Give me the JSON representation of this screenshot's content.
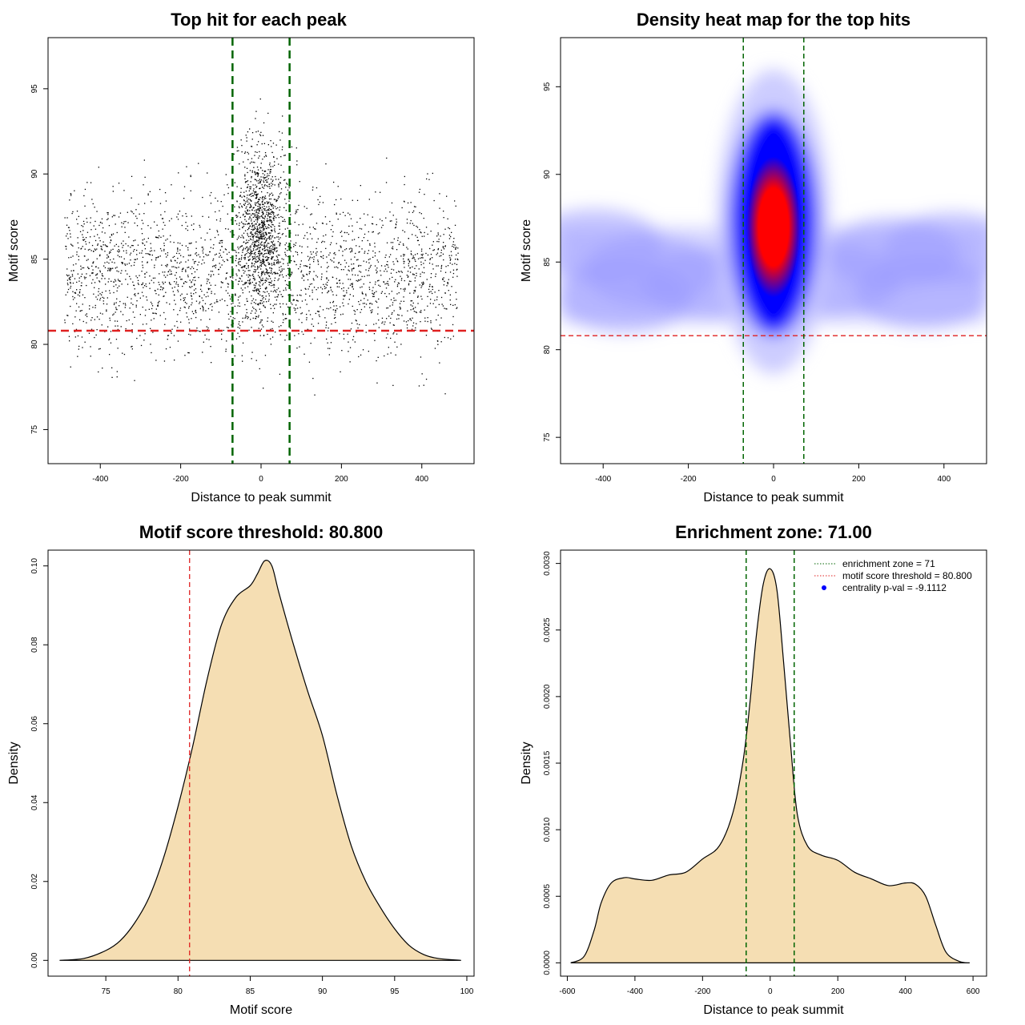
{
  "colors": {
    "scatter": "#000000",
    "threshold_line": "#e02020",
    "zone_line": "#006400",
    "density_fill": "#f5deb3",
    "density_line": "#000000",
    "heat_low": "#ffffff",
    "heat_mid": "#0000ff",
    "heat_high": "#ff0000",
    "pval_dot": "#0000ff"
  },
  "chart_data": [
    {
      "id": "scatter",
      "type": "scatter",
      "title": "Top hit for each peak",
      "xlabel": "Distance to peak summit",
      "ylabel": "Motif score",
      "xlim": [
        -530,
        530
      ],
      "ylim": [
        73,
        98
      ],
      "xticks": [
        -400,
        -200,
        0,
        200,
        400
      ],
      "xtick_labels": [
        "-400",
        "-200",
        "0",
        "200",
        "400"
      ],
      "yticks": [
        75,
        80,
        85,
        90,
        95
      ],
      "ytick_labels": [
        "75",
        "80",
        "85",
        "90",
        "95"
      ],
      "hline": 80.8,
      "vlines": [
        -71,
        71
      ],
      "n_points": 3600
    },
    {
      "id": "heatmap",
      "type": "heatmap",
      "title": "Density heat map for the top hits",
      "xlabel": "Distance to peak summit",
      "ylabel": "Motif score",
      "xlim": [
        -500,
        500
      ],
      "ylim": [
        73.5,
        97.8
      ],
      "xticks": [
        -400,
        -200,
        0,
        200,
        400
      ],
      "xtick_labels": [
        "-400",
        "-200",
        "0",
        "200",
        "400"
      ],
      "yticks": [
        75,
        80,
        85,
        90,
        95
      ],
      "ytick_labels": [
        "75",
        "80",
        "85",
        "90",
        "95"
      ],
      "hline": 80.8,
      "vlines": [
        -71,
        71
      ],
      "density_peak": {
        "x": 0,
        "y": 87
      }
    },
    {
      "id": "score_density",
      "type": "area",
      "title": "Motif score threshold: 80.800",
      "xlabel": "Motif score",
      "ylabel": "Density",
      "xlim": [
        71,
        100.5
      ],
      "ylim": [
        -0.004,
        0.104
      ],
      "xticks": [
        75,
        80,
        85,
        90,
        95,
        100
      ],
      "xtick_labels": [
        "75",
        "80",
        "85",
        "90",
        "95",
        "100"
      ],
      "yticks": [
        0,
        0.02,
        0.04,
        0.06,
        0.08,
        0.1
      ],
      "ytick_labels": [
        "0.00",
        "0.02",
        "0.04",
        "0.06",
        "0.08",
        "0.10"
      ],
      "vline": 80.8,
      "x": [
        71.8,
        73.5,
        75,
        76,
        77,
        78,
        79,
        80,
        81,
        82,
        83,
        84,
        85,
        85.5,
        86,
        86.5,
        87,
        88,
        89,
        90,
        91,
        92,
        93,
        94,
        95,
        96,
        97,
        98,
        99.6
      ],
      "y": [
        0,
        0.0005,
        0.0025,
        0.005,
        0.0095,
        0.016,
        0.026,
        0.039,
        0.054,
        0.071,
        0.085,
        0.092,
        0.095,
        0.098,
        0.1013,
        0.1,
        0.093,
        0.08,
        0.068,
        0.057,
        0.042,
        0.029,
        0.02,
        0.0135,
        0.008,
        0.0038,
        0.0015,
        0.0005,
        0
      ]
    },
    {
      "id": "distance_density",
      "type": "area",
      "title": "Enrichment zone: 71.00",
      "xlabel": "Distance to peak summit",
      "ylabel": "Density",
      "xlim": [
        -620,
        640
      ],
      "ylim": [
        -0.0001,
        0.0031
      ],
      "xticks": [
        -600,
        -400,
        -200,
        0,
        200,
        400,
        600
      ],
      "xtick_labels": [
        "-600",
        "-400",
        "-200",
        "0",
        "200",
        "400",
        "600"
      ],
      "yticks": [
        0,
        0.0005,
        0.001,
        0.0015,
        0.002,
        0.0025,
        0.003
      ],
      "ytick_labels": [
        "0.0000",
        "0.0005",
        "0.0010",
        "0.0015",
        "0.0020",
        "0.0025",
        "0.0030"
      ],
      "vlines": [
        -71,
        71
      ],
      "x": [
        -590,
        -550,
        -520,
        -500,
        -470,
        -430,
        -400,
        -350,
        -300,
        -250,
        -200,
        -150,
        -110,
        -80,
        -60,
        -40,
        -20,
        0,
        20,
        40,
        60,
        80,
        110,
        150,
        200,
        250,
        300,
        350,
        400,
        430,
        460,
        490,
        520,
        560,
        590
      ],
      "y": [
        0,
        5e-05,
        0.00025,
        0.00045,
        0.0006,
        0.00064,
        0.00063,
        0.00062,
        0.00066,
        0.00068,
        0.00078,
        0.00088,
        0.00113,
        0.00152,
        0.00195,
        0.00248,
        0.00285,
        0.00296,
        0.0028,
        0.00225,
        0.00165,
        0.00112,
        0.00088,
        0.00081,
        0.00077,
        0.00068,
        0.00063,
        0.00058,
        0.0006,
        0.00059,
        0.0005,
        0.00028,
        8e-05,
        1e-05,
        0
      ]
    }
  ],
  "legend": [
    {
      "label": "enrichment zone = 71",
      "style": "dotted",
      "color": "#006400"
    },
    {
      "label": "motif score threshold = 80.800",
      "style": "dotted",
      "color": "#e02020"
    },
    {
      "label": "centrality p-val = -9.1112",
      "style": "dot",
      "color": "#0000ff"
    }
  ]
}
